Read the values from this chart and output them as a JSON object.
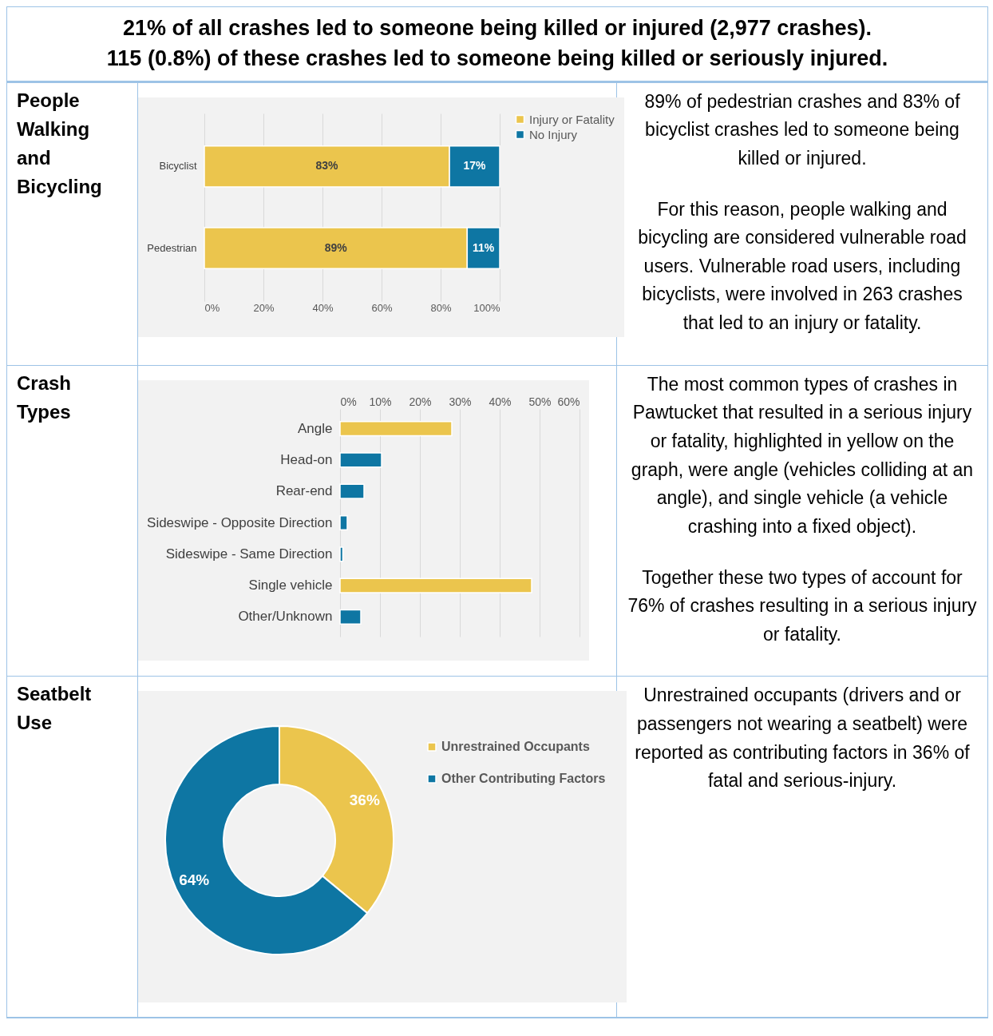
{
  "chart_data": [
    {
      "type": "other",
      "title": "21% of all crashes led to someone being killed or injured (2,977 crashes).",
      "subtitle": "115 (0.8%) of these crashes led to someone being killed or seriously injured."
    },
    {
      "type": "bar",
      "title": "People Walking and Bicycling",
      "orientation": "horizontal",
      "stacked": true,
      "categories": [
        "Bicyclist",
        "Pedestrian"
      ],
      "series": [
        {
          "name": "Injury or Fatality",
          "color": "#ebc54d",
          "values": [
            83,
            89
          ],
          "value_labels": [
            "83%",
            "89%"
          ]
        },
        {
          "name": "No Injury",
          "color": "#0e76a3",
          "values": [
            17,
            11
          ],
          "value_labels": [
            "17%",
            "11%"
          ]
        }
      ],
      "xlim": [
        0,
        100
      ],
      "xticks": [
        {
          "value": 0,
          "label": "0%"
        },
        {
          "value": 20,
          "label": "20%"
        },
        {
          "value": 40,
          "label": "40%"
        },
        {
          "value": 60,
          "label": "60%"
        },
        {
          "value": 80,
          "label": "80%"
        },
        {
          "value": 100,
          "label": "100%"
        }
      ],
      "grid": "x",
      "legend": "right"
    },
    {
      "type": "other",
      "annotations": [
        "89% of pedestrian crashes and 83% of bicyclist crashes led to someone being killed or injured.",
        "For this reason, people walking and bicycling are considered vulnerable road users. Vulnerable road users, including bicyclists, were involved in 263 crashes that led to an injury or fatality."
      ]
    },
    {
      "type": "bar",
      "title": "Crash Types",
      "orientation": "horizontal",
      "categories": [
        "Angle",
        "Head-on",
        "Rear-end",
        "Sideswipe - Opposite Direction",
        "Sideswipe - Same Direction",
        "Single vehicle",
        "Other/Unknown"
      ],
      "values": [
        28,
        10.4,
        6,
        1.8,
        0.7,
        48,
        5.2
      ],
      "colors": [
        "#ebc54d",
        "#0e76a3",
        "#0e76a3",
        "#0e76a3",
        "#0e76a3",
        "#ebc54d",
        "#0e76a3"
      ],
      "xlim": [
        0,
        60
      ],
      "xticks": [
        {
          "value": 0,
          "label": "0%"
        },
        {
          "value": 10,
          "label": "10%"
        },
        {
          "value": 20,
          "label": "20%"
        },
        {
          "value": 30,
          "label": "30%"
        },
        {
          "value": 40,
          "label": "40%"
        },
        {
          "value": 50,
          "label": "50%"
        },
        {
          "value": 60,
          "label": "60%"
        }
      ],
      "grid": "x"
    },
    {
      "type": "other",
      "annotations": [
        "The most common types of crashes in Pawtucket that resulted in a serious injury or fatality, highlighted in yellow on the graph, were angle (vehicles colliding at an angle), and single vehicle (a vehicle crashing into a fixed object).",
        "Together these two types of account for 76% of crashes resulting in a serious injury or fatality."
      ]
    },
    {
      "type": "donut",
      "title": "Seatbelt Use",
      "categories": [
        "Unrestrained Occupants",
        "Other Contributing Factors"
      ],
      "values": [
        36,
        64
      ],
      "colors": [
        "#ebc54d",
        "#0e76a3"
      ],
      "value_labels": [
        "36%",
        "64%"
      ],
      "legend": "right"
    },
    {
      "type": "other",
      "annotations": [
        "Unrestrained occupants (drivers and or passengers not wearing a seatbelt) were reported as contributing factors in 36% of fatal and serious-injury."
      ]
    }
  ]
}
